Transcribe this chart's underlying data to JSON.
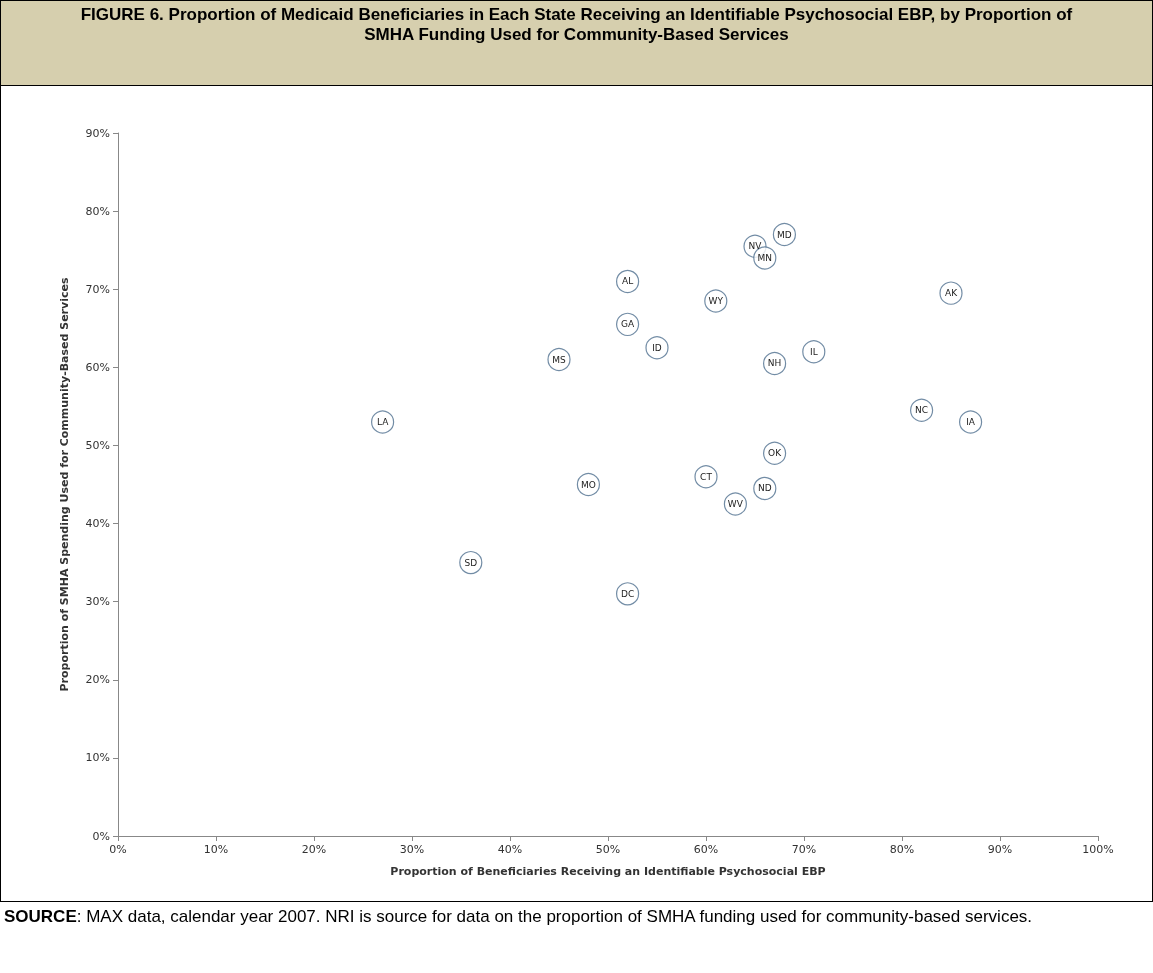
{
  "chart_data": {
    "type": "scatter",
    "title": "FIGURE 6. Proportion of Medicaid Beneficiaries in Each State Receiving an Identifiable Psychosocial EBP, by Proportion of SMHA Funding Used for Community-Based Services",
    "xlabel": "Proportion of Beneficiaries Receiving an Identifiable Psychosocial EBP",
    "ylabel": "Proportion of SMHA Spending Used for Community-Based Services",
    "x": [
      27,
      45,
      48,
      36,
      52,
      52,
      55,
      61,
      65,
      66,
      68,
      67,
      71,
      85,
      82,
      87,
      67,
      60,
      66,
      63,
      52
    ],
    "series": [
      {
        "color": "#4f6f8f",
        "values": [
          53,
          61,
          45,
          35,
          71,
          65.5,
          62.5,
          68.5,
          75.5,
          74,
          77,
          60.5,
          62,
          69.5,
          54.5,
          53,
          49,
          46,
          44.5,
          42.5,
          31
        ]
      }
    ],
    "marker": "circle",
    "grid": false,
    "xlim": [
      0,
      100
    ],
    "ylim": [
      0,
      90
    ],
    "xticks": [
      {
        "value": 0,
        "label": "0%"
      },
      {
        "value": 10,
        "label": "10%"
      },
      {
        "value": 20,
        "label": "20%"
      },
      {
        "value": 30,
        "label": "30%"
      },
      {
        "value": 40,
        "label": "40%"
      },
      {
        "value": 50,
        "label": "50%"
      },
      {
        "value": 60,
        "label": "60%"
      },
      {
        "value": 70,
        "label": "70%"
      },
      {
        "value": 80,
        "label": "80%"
      },
      {
        "value": 90,
        "label": "90%"
      },
      {
        "value": 100,
        "label": "100%"
      }
    ],
    "yticks": [
      {
        "value": 0,
        "label": "0%"
      },
      {
        "value": 10,
        "label": "10%"
      },
      {
        "value": 20,
        "label": "20%"
      },
      {
        "value": 30,
        "label": "30%"
      },
      {
        "value": 40,
        "label": "40%"
      },
      {
        "value": 50,
        "label": "50%"
      },
      {
        "value": 60,
        "label": "60%"
      },
      {
        "value": 70,
        "label": "70%"
      },
      {
        "value": 80,
        "label": "80%"
      },
      {
        "value": 90,
        "label": "90%"
      }
    ],
    "annotations": [
      {
        "text": "LA",
        "x": 27,
        "y": 53
      },
      {
        "text": "MS",
        "x": 45,
        "y": 61
      },
      {
        "text": "MO",
        "x": 48,
        "y": 45
      },
      {
        "text": "SD",
        "x": 36,
        "y": 35
      },
      {
        "text": "AL",
        "x": 52,
        "y": 71
      },
      {
        "text": "GA",
        "x": 52,
        "y": 65.5
      },
      {
        "text": "ID",
        "x": 55,
        "y": 62.5
      },
      {
        "text": "WY",
        "x": 61,
        "y": 68.5
      },
      {
        "text": "NV",
        "x": 65,
        "y": 75.5
      },
      {
        "text": "MN",
        "x": 66,
        "y": 74
      },
      {
        "text": "MD",
        "x": 68,
        "y": 77
      },
      {
        "text": "NH",
        "x": 67,
        "y": 60.5
      },
      {
        "text": "IL",
        "x": 71,
        "y": 62
      },
      {
        "text": "AK",
        "x": 85,
        "y": 69.5
      },
      {
        "text": "NC",
        "x": 82,
        "y": 54.5
      },
      {
        "text": "IA",
        "x": 87,
        "y": 53
      },
      {
        "text": "OK",
        "x": 67,
        "y": 49
      },
      {
        "text": "CT",
        "x": 60,
        "y": 46
      },
      {
        "text": "ND",
        "x": 66,
        "y": 44.5
      },
      {
        "text": "WV",
        "x": 63,
        "y": 42.5
      },
      {
        "text": "DC",
        "x": 52,
        "y": 31
      },
      "SOURCE: MAX data, calendar year 2007. NRI is source for data on the proportion of SMHA funding used for community-based services."
    ]
  }
}
